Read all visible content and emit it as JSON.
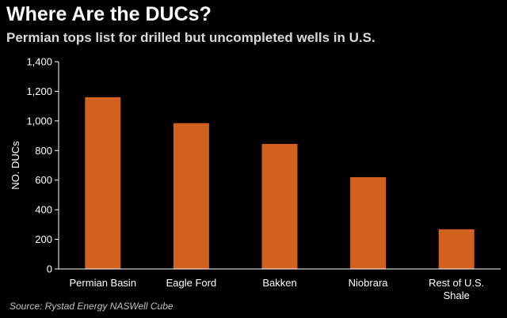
{
  "header": {
    "title": "Where Are the DUCs?",
    "subtitle": "Permian tops list for drilled but uncompleted wells in U.S."
  },
  "footer": {
    "source": "Source: Rystad Energy NASWell Cube"
  },
  "colors": {
    "background": "#000000",
    "bar": "#d2601f",
    "axis": "#ffffff",
    "text": "#ffffff"
  },
  "chart_data": {
    "type": "bar",
    "categories": [
      "Permian Basin",
      "Eagle Ford",
      "Bakken",
      "Niobrara",
      "Rest of U.S. Shale"
    ],
    "values": [
      1160,
      985,
      845,
      620,
      268
    ],
    "ylabel": "NO. DUCs",
    "ylim": [
      0,
      1400
    ],
    "yticks": [
      0,
      200,
      400,
      600,
      800,
      1000,
      1200,
      1400
    ],
    "ytick_labels": [
      "0",
      "200",
      "400",
      "600",
      "800",
      "1,000",
      "1,200",
      "1,400"
    ],
    "grid": false,
    "legend": "none"
  }
}
